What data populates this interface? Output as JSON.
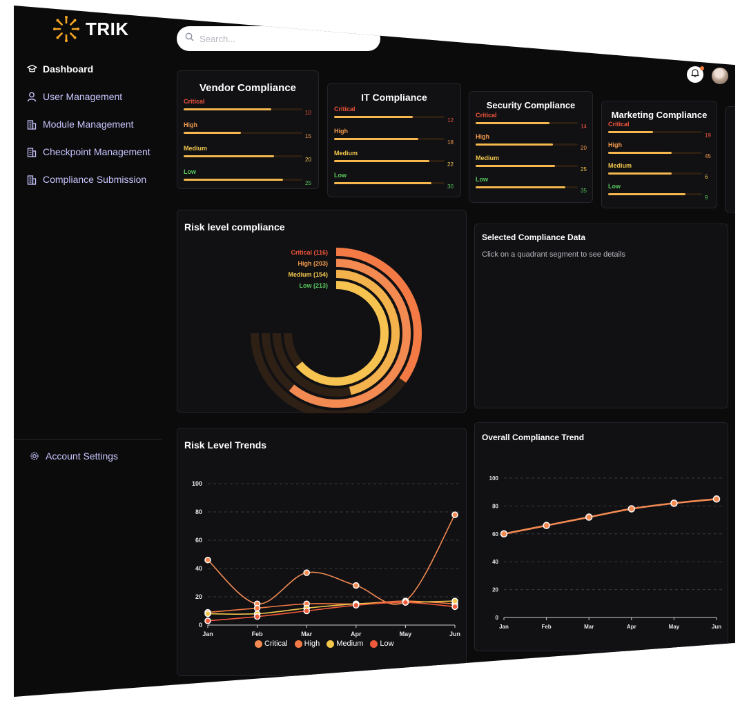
{
  "app": {
    "name": "TRIK"
  },
  "sidebar": {
    "items": [
      {
        "label": "Dashboard",
        "icon": "graduation-cap-icon",
        "active": true
      },
      {
        "label": "User Management",
        "icon": "user-icon"
      },
      {
        "label": "Module Management",
        "icon": "building-icon"
      },
      {
        "label": "Checkpoint Management",
        "icon": "building-icon"
      },
      {
        "label": "Compliance Submission",
        "icon": "building-icon"
      }
    ],
    "account_settings": "Account Settings"
  },
  "header": {
    "search_placeholder": "Search..."
  },
  "colors": {
    "critical": "#f2543b",
    "high": "#f39a4d",
    "medium": "#f3c74c",
    "low": "#59c95c",
    "bar_fill": "#f6b84e",
    "accent": "#f28a52"
  },
  "compliance_cards": [
    {
      "title": "Vendor Compliance",
      "rows": [
        {
          "label": "Critical",
          "value": "10",
          "fill": 0.74
        },
        {
          "label": "High",
          "value": "15",
          "fill": 0.48
        },
        {
          "label": "Medium",
          "value": "20",
          "fill": 0.76
        },
        {
          "label": "Low",
          "value": "25",
          "fill": 0.84
        }
      ]
    },
    {
      "title": "IT Compliance",
      "rows": [
        {
          "label": "Critical",
          "value": "12",
          "fill": 0.71
        },
        {
          "label": "High",
          "value": "18",
          "fill": 0.76
        },
        {
          "label": "Medium",
          "value": "22",
          "fill": 0.86
        },
        {
          "label": "Low",
          "value": "30",
          "fill": 0.88
        }
      ]
    },
    {
      "title": "Security Compliance",
      "rows": [
        {
          "label": "Critical",
          "value": "14",
          "fill": 0.72
        },
        {
          "label": "High",
          "value": "20",
          "fill": 0.76
        },
        {
          "label": "Medium",
          "value": "25",
          "fill": 0.78
        },
        {
          "label": "Low",
          "value": "35",
          "fill": 0.88
        }
      ]
    },
    {
      "title": "Marketing Compliance",
      "rows": [
        {
          "label": "Critical",
          "value": "19",
          "fill": 0.48
        },
        {
          "label": "High",
          "value": "45",
          "fill": 0.68
        },
        {
          "label": "Medium",
          "value": "6",
          "fill": 0.68
        },
        {
          "label": "Low",
          "value": "9",
          "fill": 0.82
        }
      ]
    }
  ],
  "risk_panel": {
    "title": "Risk level compliance"
  },
  "selected_panel": {
    "title": "Selected Compliance Data",
    "hint": "Click on a quadrant segment to see details"
  },
  "trends_panel": {
    "title": "Risk Level Trends"
  },
  "overall_panel": {
    "title": "Overall Compliance Trend"
  },
  "chart_data": [
    {
      "type": "radial-bar",
      "series": [
        {
          "name": "Critical",
          "value": 116,
          "label": "Critical (116)"
        },
        {
          "name": "High",
          "value": 203,
          "label": "High (203)"
        },
        {
          "name": "Medium",
          "value": 154,
          "label": "Medium (154)"
        },
        {
          "name": "Low",
          "value": 213,
          "label": "Low (213)"
        }
      ]
    },
    {
      "type": "line",
      "title": "Risk Level Trends",
      "categories": [
        "Jan",
        "Feb",
        "Mar",
        "Apr",
        "May",
        "Jun"
      ],
      "yticks": [
        0,
        20,
        40,
        60,
        80,
        100
      ],
      "ylim": [
        0,
        100
      ],
      "grid": true,
      "legend_position": "bottom",
      "series": [
        {
          "name": "Critical",
          "color": "#f28a52",
          "values": [
            46,
            15,
            37,
            28,
            17,
            78
          ]
        },
        {
          "name": "High",
          "color": "#f47a45",
          "values": [
            9,
            12,
            15,
            15,
            17,
            15
          ]
        },
        {
          "name": "Medium",
          "color": "#f3c74c",
          "values": [
            8,
            8,
            12,
            15,
            16,
            17
          ]
        },
        {
          "name": "Low",
          "color": "#f05a3c",
          "values": [
            3,
            6,
            10,
            14,
            16,
            13
          ]
        }
      ]
    },
    {
      "type": "line",
      "title": "Overall Compliance Trend",
      "categories": [
        "Jan",
        "Feb",
        "Mar",
        "Apr",
        "May",
        "Jun"
      ],
      "yticks": [
        0,
        20,
        40,
        60,
        80,
        100
      ],
      "ylim": [
        0,
        100
      ],
      "grid": true,
      "series": [
        {
          "name": "",
          "color": "#f28a52",
          "values": [
            60,
            66,
            72,
            78,
            82,
            85
          ]
        }
      ]
    }
  ]
}
